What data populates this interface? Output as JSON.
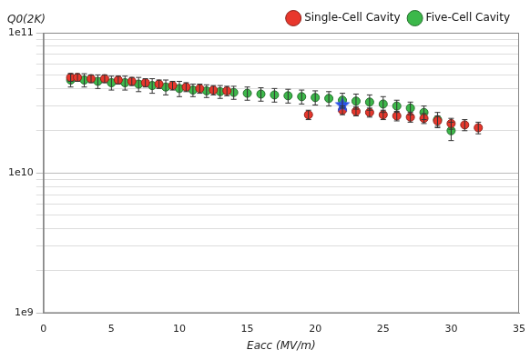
{
  "chart_data": {
    "type": "scatter",
    "x_label": "Eacc (MV/m)",
    "y_label": "Q0(2K)",
    "log": "y",
    "grid": true,
    "legend": "top-right",
    "xlim": [
      0,
      35
    ],
    "xticks": [
      0,
      5,
      10,
      15,
      20,
      25,
      30,
      35
    ],
    "ylim": [
      1000000000,
      100000000000
    ],
    "yticks": [
      {
        "value": 1000000000,
        "label": "1e9"
      },
      {
        "value": 10000000000,
        "label": "1e10"
      },
      {
        "value": 100000000000,
        "label": "1e11"
      }
    ],
    "series": [
      {
        "name": "Single-Cell Cavity",
        "color": "#e8372c",
        "marker": "circle",
        "x": [
          2,
          2.5,
          3.5,
          4.5,
          5.5,
          6.5,
          7.5,
          8.5,
          9.5,
          10.5,
          11.5,
          12.5,
          13.5,
          19.5,
          22,
          23,
          24,
          25,
          26,
          27,
          28,
          29,
          30,
          31,
          32
        ],
        "values": [
          48000000000,
          48000000000,
          47000000000,
          47000000000,
          46000000000,
          45000000000,
          44000000000,
          43000000000,
          42000000000,
          41000000000,
          40000000000,
          39000000000,
          38500000000,
          26000000000,
          28000000000,
          27500000000,
          27000000000,
          26000000000,
          25500000000,
          25000000000,
          24500000000,
          23500000000,
          22500000000,
          22000000000,
          21000000000
        ],
        "y_err": [
          3000000000,
          3000000000,
          3000000000,
          3000000000,
          3000000000,
          3000000000,
          3000000000,
          3000000000,
          3000000000,
          3000000000,
          3000000000,
          3000000000,
          3000000000,
          2000000000,
          2000000000,
          2000000000,
          2000000000,
          2000000000,
          2000000000,
          2000000000,
          2000000000,
          2000000000,
          2000000000,
          2000000000,
          2000000000
        ]
      },
      {
        "name": "Five-Cell Cavity",
        "color": "#3cb84a",
        "marker": "circle",
        "x": [
          2,
          3,
          4,
          5,
          6,
          7,
          8,
          9,
          10,
          11,
          12,
          13,
          14,
          15,
          16,
          17,
          18,
          19,
          20,
          21,
          22,
          23,
          24,
          25,
          26,
          27,
          28,
          29,
          30
        ],
        "values": [
          46000000000,
          46000000000,
          45000000000,
          44000000000,
          44000000000,
          43000000000,
          42000000000,
          41000000000,
          40000000000,
          39000000000,
          38500000000,
          38000000000,
          37500000000,
          37000000000,
          36500000000,
          36000000000,
          35500000000,
          35000000000,
          34500000000,
          34000000000,
          33000000000,
          32500000000,
          32000000000,
          31000000000,
          30000000000,
          29000000000,
          27000000000,
          24000000000,
          20000000000
        ],
        "y_err": [
          5000000000,
          5000000000,
          5000000000,
          5000000000,
          5000000000,
          5000000000,
          5000000000,
          5000000000,
          5000000000,
          4000000000,
          4000000000,
          4000000000,
          4000000000,
          4000000000,
          4000000000,
          4000000000,
          4000000000,
          4000000000,
          4000000000,
          4000000000,
          4000000000,
          4000000000,
          4000000000,
          4000000000,
          3000000000,
          3000000000,
          3000000000,
          3000000000,
          3000000000
        ]
      },
      {
        "color": "#2a52e8",
        "marker": "star",
        "x": [
          22
        ],
        "values": [
          31000000000
        ]
      }
    ]
  }
}
